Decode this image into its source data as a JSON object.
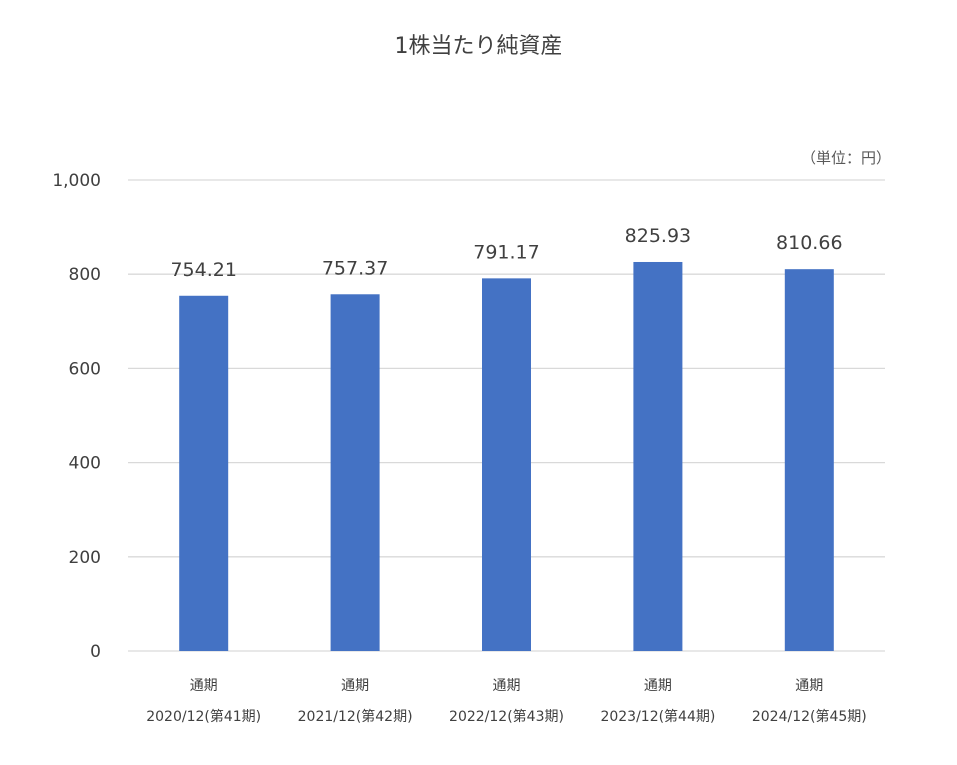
{
  "chart_data": {
    "type": "bar",
    "title": "1株当たり純資産",
    "unit_label": "（単位：円）",
    "categories": [
      {
        "line1": "通期",
        "line2": "2020/12(第41期)"
      },
      {
        "line1": "通期",
        "line2": "2021/12(第42期)"
      },
      {
        "line1": "通期",
        "line2": "2022/12(第43期)"
      },
      {
        "line1": "通期",
        "line2": "2023/12(第44期)"
      },
      {
        "line1": "通期",
        "line2": "2024/12(第45期)"
      }
    ],
    "values": [
      754.21,
      757.37,
      791.17,
      825.93,
      810.66
    ],
    "data_labels": [
      "754.21",
      "757.37",
      "791.17",
      "825.93",
      "810.66"
    ],
    "yticks": [
      0,
      200,
      400,
      600,
      800,
      1000
    ],
    "ytick_labels": [
      "0",
      "200",
      "400",
      "600",
      "800",
      "1,000"
    ],
    "ylim": [
      0,
      1000
    ],
    "grid": true,
    "bar_color": "#4472C4",
    "grid_color": "#D9D9D9"
  }
}
